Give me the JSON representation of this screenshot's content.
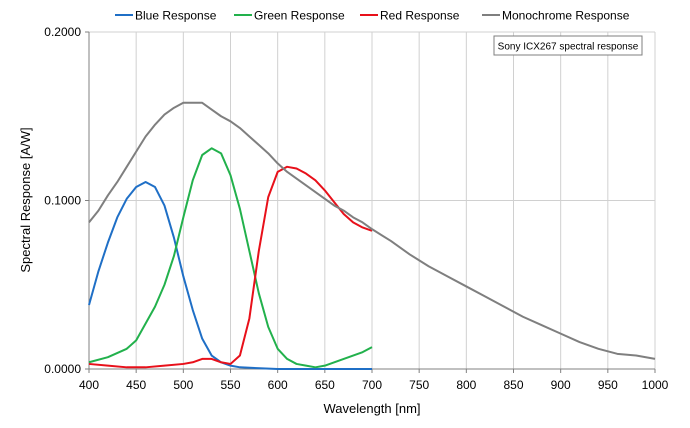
{
  "chart_data": {
    "type": "line",
    "xlabel": "Wavelength [nm]",
    "ylabel": "Spectral Response [A/W]",
    "xlim": [
      400,
      1000
    ],
    "ylim": [
      0,
      0.2
    ],
    "x_ticks": [
      400,
      450,
      500,
      550,
      600,
      650,
      700,
      750,
      800,
      850,
      900,
      950,
      1000
    ],
    "y_ticks": [
      0,
      0.1,
      0.2
    ],
    "y_tick_labels": [
      "0.0000",
      "0.1000",
      "0.2000"
    ],
    "grid": true,
    "legend_position": "top",
    "annotation": "Sony ICX267 spectral response",
    "series": [
      {
        "name": "Blue Response",
        "color": "#1f6fc6",
        "points": [
          [
            400,
            0.038
          ],
          [
            405,
            0.048
          ],
          [
            410,
            0.058
          ],
          [
            420,
            0.075
          ],
          [
            430,
            0.09
          ],
          [
            440,
            0.101
          ],
          [
            450,
            0.108
          ],
          [
            460,
            0.111
          ],
          [
            470,
            0.108
          ],
          [
            480,
            0.097
          ],
          [
            490,
            0.078
          ],
          [
            500,
            0.055
          ],
          [
            510,
            0.035
          ],
          [
            520,
            0.018
          ],
          [
            530,
            0.008
          ],
          [
            540,
            0.004
          ],
          [
            550,
            0.002
          ],
          [
            560,
            0.001
          ],
          [
            600,
            0.0
          ],
          [
            650,
            0.0
          ],
          [
            700,
            0.0
          ]
        ]
      },
      {
        "name": "Green Response",
        "color": "#22b14c",
        "points": [
          [
            400,
            0.004
          ],
          [
            420,
            0.007
          ],
          [
            440,
            0.012
          ],
          [
            450,
            0.017
          ],
          [
            460,
            0.027
          ],
          [
            470,
            0.037
          ],
          [
            480,
            0.05
          ],
          [
            490,
            0.067
          ],
          [
            500,
            0.09
          ],
          [
            510,
            0.112
          ],
          [
            520,
            0.127
          ],
          [
            530,
            0.131
          ],
          [
            540,
            0.128
          ],
          [
            550,
            0.115
          ],
          [
            560,
            0.095
          ],
          [
            570,
            0.07
          ],
          [
            580,
            0.045
          ],
          [
            590,
            0.025
          ],
          [
            600,
            0.012
          ],
          [
            610,
            0.006
          ],
          [
            620,
            0.003
          ],
          [
            630,
            0.002
          ],
          [
            640,
            0.001
          ],
          [
            650,
            0.002
          ],
          [
            660,
            0.004
          ],
          [
            670,
            0.006
          ],
          [
            680,
            0.008
          ],
          [
            690,
            0.01
          ],
          [
            700,
            0.013
          ]
        ]
      },
      {
        "name": "Red Response",
        "color": "#e8101a",
        "points": [
          [
            400,
            0.003
          ],
          [
            420,
            0.002
          ],
          [
            440,
            0.001
          ],
          [
            460,
            0.001
          ],
          [
            480,
            0.002
          ],
          [
            500,
            0.003
          ],
          [
            510,
            0.004
          ],
          [
            520,
            0.006
          ],
          [
            530,
            0.006
          ],
          [
            540,
            0.004
          ],
          [
            550,
            0.003
          ],
          [
            560,
            0.008
          ],
          [
            570,
            0.03
          ],
          [
            580,
            0.07
          ],
          [
            590,
            0.102
          ],
          [
            600,
            0.117
          ],
          [
            610,
            0.12
          ],
          [
            620,
            0.119
          ],
          [
            630,
            0.116
          ],
          [
            640,
            0.112
          ],
          [
            650,
            0.106
          ],
          [
            660,
            0.099
          ],
          [
            670,
            0.092
          ],
          [
            680,
            0.087
          ],
          [
            690,
            0.084
          ],
          [
            700,
            0.082
          ]
        ]
      },
      {
        "name": "Monochrome Response",
        "color": "#7f7f7f",
        "points": [
          [
            400,
            0.087
          ],
          [
            410,
            0.094
          ],
          [
            420,
            0.103
          ],
          [
            430,
            0.111
          ],
          [
            440,
            0.12
          ],
          [
            450,
            0.129
          ],
          [
            460,
            0.138
          ],
          [
            470,
            0.145
          ],
          [
            480,
            0.151
          ],
          [
            490,
            0.155
          ],
          [
            500,
            0.158
          ],
          [
            510,
            0.158
          ],
          [
            520,
            0.158
          ],
          [
            530,
            0.154
          ],
          [
            540,
            0.15
          ],
          [
            550,
            0.147
          ],
          [
            560,
            0.143
          ],
          [
            570,
            0.138
          ],
          [
            580,
            0.133
          ],
          [
            590,
            0.128
          ],
          [
            600,
            0.122
          ],
          [
            610,
            0.117
          ],
          [
            620,
            0.113
          ],
          [
            630,
            0.109
          ],
          [
            640,
            0.105
          ],
          [
            650,
            0.101
          ],
          [
            660,
            0.097
          ],
          [
            670,
            0.094
          ],
          [
            680,
            0.09
          ],
          [
            690,
            0.087
          ],
          [
            700,
            0.083
          ],
          [
            720,
            0.076
          ],
          [
            740,
            0.068
          ],
          [
            760,
            0.061
          ],
          [
            780,
            0.055
          ],
          [
            800,
            0.049
          ],
          [
            820,
            0.043
          ],
          [
            840,
            0.037
          ],
          [
            860,
            0.031
          ],
          [
            880,
            0.026
          ],
          [
            900,
            0.021
          ],
          [
            920,
            0.016
          ],
          [
            940,
            0.012
          ],
          [
            960,
            0.009
          ],
          [
            980,
            0.008
          ],
          [
            1000,
            0.006
          ]
        ]
      }
    ]
  }
}
